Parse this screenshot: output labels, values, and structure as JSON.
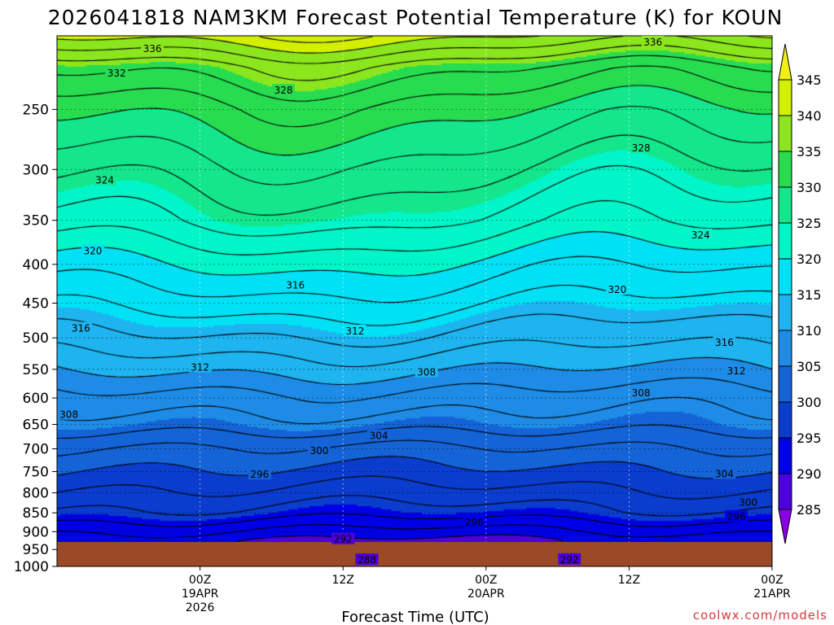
{
  "chart_data": {
    "type": "heatmap",
    "title": "2026041818 NAM3KM Forecast Potential Temperature (K) for KOUN",
    "xlabel": "Forecast Time (UTC)",
    "ylabel": "",
    "y_axis": {
      "scale": "log-pressure",
      "range_hpa": [
        200,
        1000
      ],
      "ticks": [
        "250",
        "300",
        "350",
        "400",
        "450",
        "500",
        "550",
        "600",
        "650",
        "700",
        "750",
        "800",
        "850",
        "900",
        "950",
        "1000"
      ],
      "tick_values": [
        250,
        300,
        350,
        400,
        450,
        500,
        550,
        600,
        650,
        700,
        750,
        800,
        850,
        900,
        950,
        1000
      ],
      "grid": "dotted"
    },
    "x_axis": {
      "range_hours": [
        -6,
        54
      ],
      "ticks": [
        {
          "hour": 6,
          "line1": "00Z",
          "line2": "19APR",
          "line3": "2026"
        },
        {
          "hour": 18,
          "line1": "12Z",
          "line2": "",
          "line3": ""
        },
        {
          "hour": 30,
          "line1": "00Z",
          "line2": "20APR",
          "line3": ""
        },
        {
          "hour": 42,
          "line1": "12Z",
          "line2": "",
          "line3": ""
        },
        {
          "hour": 54,
          "line1": "00Z",
          "line2": "21APR",
          "line3": ""
        }
      ]
    },
    "colorbar": {
      "units": "K",
      "labels": [
        "345",
        "340",
        "335",
        "330",
        "325",
        "320",
        "315",
        "310",
        "305",
        "300",
        "295",
        "290",
        "285"
      ],
      "levels": [
        285,
        290,
        295,
        300,
        305,
        310,
        315,
        320,
        325,
        330,
        335,
        340,
        345
      ],
      "colors": [
        "#8a00e6",
        "#4b00dc",
        "#0000e6",
        "#0a3ccd",
        "#1464d7",
        "#1e8ce6",
        "#1eb4f0",
        "#00e1f5",
        "#00f5c8",
        "#14e68c",
        "#28dc50",
        "#8ce61e",
        "#d2f000",
        "#f0f014"
      ]
    },
    "contour_interval_K": 2,
    "theta_profile": [
      {
        "p": 1000,
        "theta": 289
      },
      {
        "p": 925,
        "theta": 291
      },
      {
        "p": 850,
        "theta": 296
      },
      {
        "p": 800,
        "theta": 298
      },
      {
        "p": 750,
        "theta": 300
      },
      {
        "p": 700,
        "theta": 302
      },
      {
        "p": 650,
        "theta": 305
      },
      {
        "p": 600,
        "theta": 307
      },
      {
        "p": 550,
        "theta": 310
      },
      {
        "p": 500,
        "theta": 313
      },
      {
        "p": 450,
        "theta": 316
      },
      {
        "p": 400,
        "theta": 319
      },
      {
        "p": 350,
        "theta": 323
      },
      {
        "p": 300,
        "theta": 326
      },
      {
        "p": 250,
        "theta": 330
      },
      {
        "p": 220,
        "theta": 334
      },
      {
        "p": 200,
        "theta": 340
      }
    ],
    "contour_labels": [
      {
        "text": "336",
        "hour": 2,
        "p": 208
      },
      {
        "text": "336",
        "hour": 44,
        "p": 204
      },
      {
        "text": "332",
        "hour": -1,
        "p": 224
      },
      {
        "text": "328",
        "hour": 13,
        "p": 236
      },
      {
        "text": "328",
        "hour": 43,
        "p": 281
      },
      {
        "text": "324",
        "hour": -2,
        "p": 310
      },
      {
        "text": "324",
        "hour": 48,
        "p": 366
      },
      {
        "text": "320",
        "hour": -3,
        "p": 384
      },
      {
        "text": "320",
        "hour": 41,
        "p": 432
      },
      {
        "text": "316",
        "hour": 14,
        "p": 426
      },
      {
        "text": "316",
        "hour": -4,
        "p": 486
      },
      {
        "text": "316",
        "hour": 50,
        "p": 507
      },
      {
        "text": "312",
        "hour": 19,
        "p": 490
      },
      {
        "text": "312",
        "hour": 6,
        "p": 547
      },
      {
        "text": "312",
        "hour": 51,
        "p": 553
      },
      {
        "text": "308",
        "hour": 25,
        "p": 555
      },
      {
        "text": "308",
        "hour": 43,
        "p": 591
      },
      {
        "text": "308",
        "hour": -5,
        "p": 631
      },
      {
        "text": "304",
        "hour": 21,
        "p": 673
      },
      {
        "text": "304",
        "hour": 50,
        "p": 756
      },
      {
        "text": "300",
        "hour": 16,
        "p": 704
      },
      {
        "text": "300",
        "hour": 52,
        "p": 824
      },
      {
        "text": "296",
        "hour": 11,
        "p": 757
      },
      {
        "text": "296",
        "hour": 29,
        "p": 875
      },
      {
        "text": "296",
        "hour": 51,
        "p": 860
      },
      {
        "text": "292",
        "hour": 18,
        "p": 921
      },
      {
        "text": "292",
        "hour": 37,
        "p": 980
      },
      {
        "text": "288",
        "hour": 20,
        "p": 981
      }
    ]
  },
  "credit": "coolwx.com/models",
  "colors": {
    "ground": "#9b4a28",
    "background": "#ffffff",
    "contour": "#000000",
    "credit": "#d23c3c"
  }
}
